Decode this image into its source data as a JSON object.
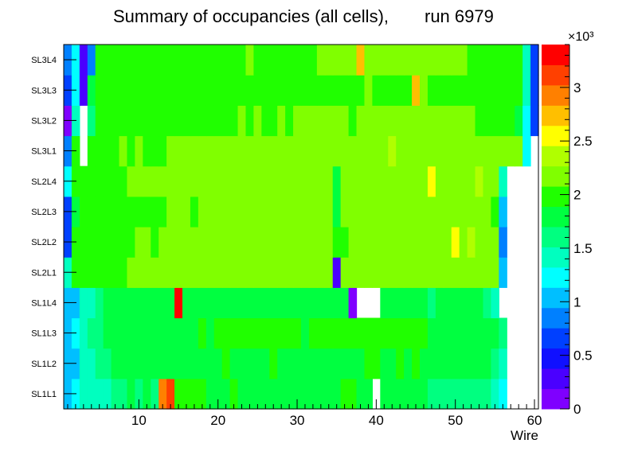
{
  "chart_data": {
    "type": "heatmap",
    "title_left": "Summary of occupancies (all cells),",
    "title_right": "run 6979",
    "xlabel": "Wire",
    "ylabel": "",
    "xlim": [
      0.5,
      60.5
    ],
    "x_ticks": [
      10,
      20,
      30,
      40,
      50,
      60
    ],
    "y_categories": [
      "SL1L1",
      "SL1L2",
      "SL1L3",
      "SL1L4",
      "SL2L1",
      "SL2L2",
      "SL2L3",
      "SL2L4",
      "SL3L1",
      "SL3L2",
      "SL3L3",
      "SL3L4"
    ],
    "colorbar": {
      "multiplier": "×10³",
      "range": [
        0,
        3.4
      ],
      "ticks": [
        0,
        0.5,
        1,
        1.5,
        2,
        2.5,
        3
      ],
      "tick_labels": [
        "0",
        "0.5",
        "1",
        "1.5",
        "2",
        "2.5",
        "3"
      ],
      "colors": [
        "#7f00ff",
        "#4a00ff",
        "#1010ff",
        "#0040ff",
        "#0080ff",
        "#00bfff",
        "#00ffff",
        "#00ffbf",
        "#00ff80",
        "#00ff40",
        "#20ff00",
        "#80ff00",
        "#b0ff00",
        "#ffff00",
        "#ffbf00",
        "#ff8000",
        "#ff4000",
        "#ff0000"
      ]
    },
    "rows": [
      {
        "name": "SL1L1",
        "values": [
          1.1,
          1.25,
          1.45,
          1.5,
          1.5,
          1.5,
          1.6,
          1.6,
          1.7,
          1.65,
          1.7,
          1.65,
          2.95,
          3.2,
          2.0,
          1.9,
          1.95,
          1.9,
          1.85,
          1.85,
          1.85,
          1.9,
          1.85,
          1.85,
          1.8,
          1.85,
          1.85,
          1.85,
          1.85,
          1.85,
          1.85,
          1.85,
          1.85,
          1.85,
          1.85,
          1.9,
          1.9,
          1.85,
          1.85,
          null,
          1.85,
          1.8,
          1.85,
          1.85,
          1.85,
          1.85,
          1.6,
          1.6,
          1.6,
          1.6,
          1.6,
          1.6,
          1.6,
          1.6,
          1.4,
          1.2,
          null,
          null,
          null,
          null
        ]
      },
      {
        "name": "SL1L2",
        "values": [
          0.95,
          1.05,
          1.4,
          1.5,
          1.55,
          1.6,
          1.7,
          1.75,
          1.75,
          1.75,
          1.8,
          1.75,
          1.75,
          1.8,
          1.75,
          1.75,
          1.75,
          1.85,
          1.8,
          1.85,
          1.9,
          1.85,
          1.85,
          1.85,
          1.85,
          1.85,
          1.9,
          1.85,
          1.85,
          1.85,
          1.85,
          1.85,
          1.85,
          1.85,
          1.85,
          1.85,
          1.85,
          1.85,
          1.9,
          1.9,
          1.85,
          1.85,
          1.9,
          1.85,
          1.9,
          1.85,
          1.75,
          1.75,
          1.75,
          1.75,
          1.75,
          1.75,
          1.75,
          1.7,
          1.6,
          1.45,
          null,
          null,
          null,
          null
        ]
      },
      {
        "name": "SL1L3",
        "values": [
          1.05,
          1.15,
          1.5,
          1.55,
          1.6,
          1.7,
          1.75,
          1.8,
          1.75,
          1.8,
          1.85,
          1.8,
          1.8,
          1.8,
          1.85,
          1.8,
          1.8,
          1.9,
          1.85,
          1.9,
          1.9,
          1.9,
          1.9,
          1.95,
          1.9,
          1.9,
          1.9,
          1.9,
          1.9,
          1.9,
          1.85,
          1.95,
          1.9,
          1.95,
          1.95,
          1.9,
          1.95,
          1.9,
          1.95,
          1.95,
          1.9,
          1.95,
          1.95,
          1.95,
          1.95,
          1.9,
          1.85,
          1.85,
          1.85,
          1.85,
          1.85,
          1.85,
          1.85,
          1.8,
          1.7,
          1.55,
          null,
          null,
          null,
          null
        ]
      },
      {
        "name": "SL1L4",
        "values": [
          0.95,
          1.05,
          1.35,
          1.5,
          1.65,
          1.7,
          1.75,
          1.75,
          1.75,
          1.8,
          1.8,
          1.8,
          1.8,
          1.8,
          3.35,
          1.8,
          1.8,
          1.8,
          1.85,
          1.85,
          1.85,
          1.85,
          1.85,
          1.85,
          1.85,
          1.85,
          1.85,
          1.85,
          1.85,
          1.85,
          1.85,
          1.85,
          1.85,
          1.85,
          1.85,
          1.85,
          0.15,
          null,
          null,
          null,
          1.85,
          1.8,
          1.85,
          1.85,
          1.8,
          1.85,
          1.65,
          1.7,
          1.7,
          1.7,
          1.7,
          1.7,
          1.7,
          1.65,
          1.5,
          null,
          null,
          null,
          null,
          null
        ]
      },
      {
        "name": "SL2L1",
        "values": [
          1.45,
          2.0,
          2.05,
          2.05,
          2.05,
          2.05,
          2.05,
          2.05,
          2.1,
          2.1,
          2.15,
          2.1,
          2.15,
          2.15,
          2.15,
          2.15,
          2.15,
          2.2,
          2.15,
          2.15,
          2.15,
          2.2,
          2.2,
          2.2,
          2.2,
          2.2,
          2.2,
          2.2,
          2.2,
          2.2,
          2.2,
          2.2,
          2.15,
          2.2,
          0.2,
          2.2,
          2.2,
          2.2,
          2.2,
          2.2,
          2.2,
          2.2,
          2.2,
          2.2,
          2.2,
          2.2,
          2.2,
          2.2,
          2.2,
          2.15,
          2.15,
          2.15,
          2.15,
          2.15,
          2.1,
          1.05,
          null,
          null,
          null,
          null
        ]
      },
      {
        "name": "SL2L2",
        "values": [
          0.6,
          1.9,
          2.05,
          2.05,
          2.0,
          2.05,
          2.0,
          2.05,
          2.05,
          2.1,
          2.1,
          2.05,
          2.1,
          2.1,
          2.1,
          2.15,
          2.1,
          2.15,
          2.1,
          2.15,
          2.15,
          2.15,
          2.15,
          2.15,
          2.15,
          2.15,
          2.15,
          2.15,
          2.15,
          2.15,
          2.15,
          2.15,
          2.15,
          2.15,
          1.9,
          1.9,
          2.2,
          2.2,
          2.2,
          2.2,
          2.2,
          2.2,
          2.2,
          2.2,
          2.2,
          2.2,
          2.2,
          2.2,
          2.2,
          2.5,
          2.15,
          2.45,
          2.15,
          2.15,
          2.1,
          0.9,
          null,
          null,
          null,
          null
        ]
      },
      {
        "name": "SL2L3",
        "values": [
          0.6,
          1.85,
          1.95,
          2.0,
          1.95,
          2.0,
          2.0,
          2.0,
          2.05,
          2.05,
          2.05,
          2.05,
          2.05,
          2.1,
          2.1,
          2.1,
          2.05,
          2.1,
          2.1,
          2.1,
          2.1,
          2.1,
          2.1,
          2.1,
          2.1,
          2.1,
          2.1,
          2.1,
          2.1,
          2.15,
          2.1,
          2.1,
          2.1,
          2.1,
          1.7,
          2.1,
          2.15,
          2.15,
          2.15,
          2.15,
          2.15,
          2.15,
          2.15,
          2.15,
          2.15,
          2.15,
          2.15,
          2.15,
          2.15,
          2.15,
          2.1,
          2.1,
          2.1,
          2.1,
          2.05,
          1.05,
          null,
          null,
          null,
          null
        ]
      },
      {
        "name": "SL2L4",
        "values": [
          1.3,
          2.0,
          2.05,
          2.05,
          2.05,
          2.05,
          2.05,
          2.05,
          2.1,
          2.1,
          2.15,
          2.1,
          2.15,
          2.15,
          2.15,
          2.2,
          2.15,
          2.15,
          2.15,
          2.15,
          2.2,
          2.2,
          2.2,
          2.2,
          2.2,
          2.2,
          2.2,
          2.2,
          2.2,
          2.2,
          2.2,
          2.2,
          2.2,
          2.15,
          1.8,
          2.2,
          2.2,
          2.2,
          2.2,
          2.2,
          2.2,
          2.2,
          2.2,
          2.2,
          2.2,
          2.2,
          2.5,
          2.2,
          2.2,
          2.2,
          2.2,
          2.2,
          2.45,
          2.2,
          2.15,
          1.35,
          null,
          null,
          null,
          null
        ]
      },
      {
        "name": "SL3L1",
        "values": [
          0.8,
          1.9,
          null,
          2.0,
          2.05,
          2.0,
          2.05,
          2.1,
          2.05,
          2.1,
          2.05,
          2.05,
          2.05,
          2.1,
          2.1,
          2.1,
          2.1,
          2.15,
          2.15,
          2.15,
          2.15,
          2.15,
          2.15,
          2.15,
          2.15,
          2.15,
          2.15,
          2.15,
          2.15,
          2.15,
          2.15,
          2.15,
          2.15,
          2.15,
          2.15,
          2.2,
          2.15,
          2.2,
          2.2,
          2.15,
          2.2,
          2.45,
          2.15,
          2.2,
          2.2,
          2.2,
          2.2,
          2.2,
          2.2,
          2.2,
          2.2,
          2.2,
          2.2,
          2.2,
          2.2,
          2.2,
          2.2,
          2.2,
          1.3,
          null
        ]
      },
      {
        "name": "SL3L2",
        "values": [
          0.1,
          1.4,
          null,
          1.55,
          2.0,
          2.05,
          2.0,
          2.05,
          2.0,
          2.05,
          2.05,
          2.05,
          2.05,
          2.05,
          2.0,
          2.05,
          2.05,
          2.05,
          2.05,
          2.05,
          2.05,
          2.05,
          2.1,
          2.05,
          2.1,
          2.05,
          2.05,
          2.1,
          2.05,
          2.1,
          2.1,
          2.1,
          2.1,
          2.1,
          2.1,
          2.1,
          2.05,
          2.1,
          2.1,
          2.1,
          2.1,
          2.1,
          2.1,
          2.1,
          2.1,
          2.1,
          2.1,
          2.1,
          2.1,
          2.1,
          2.1,
          2.1,
          2.05,
          2.05,
          2.05,
          2.0,
          2.0,
          1.8,
          1.2,
          0.6
        ]
      },
      {
        "name": "SL3L3",
        "values": [
          0.6,
          1.15,
          0.3,
          1.7,
          1.95,
          2.0,
          1.95,
          2.0,
          2.0,
          2.0,
          2.0,
          2.05,
          2.0,
          2.0,
          2.0,
          2.05,
          2.0,
          2.05,
          2.0,
          2.05,
          2.05,
          2.05,
          2.05,
          2.05,
          2.05,
          2.05,
          2.05,
          2.05,
          2.05,
          2.05,
          2.05,
          2.05,
          2.05,
          2.05,
          2.05,
          2.05,
          2.05,
          2.05,
          2.1,
          2.05,
          2.05,
          2.05,
          2.05,
          2.05,
          2.65,
          2.1,
          2.05,
          2.05,
          2.05,
          2.05,
          2.05,
          2.05,
          2.0,
          2.0,
          2.0,
          2.0,
          2.0,
          2.0,
          1.4,
          0.6
        ]
      },
      {
        "name": "SL3L4",
        "values": [
          0.9,
          1.3,
          0.3,
          0.9,
          2.05,
          2.0,
          2.0,
          2.0,
          2.0,
          2.0,
          2.0,
          2.05,
          2.05,
          2.05,
          2.0,
          2.05,
          2.05,
          2.05,
          2.05,
          2.05,
          2.05,
          2.05,
          2.05,
          2.1,
          2.05,
          2.05,
          2.05,
          2.05,
          2.05,
          2.05,
          2.05,
          2.05,
          2.1,
          2.1,
          2.1,
          2.1,
          2.1,
          2.75,
          2.2,
          2.1,
          2.1,
          2.1,
          2.1,
          2.1,
          2.1,
          2.1,
          2.1,
          2.1,
          2.1,
          2.1,
          2.1,
          2.05,
          2.05,
          2.05,
          2.05,
          2.05,
          2.05,
          2.05,
          1.4,
          0.6
        ]
      }
    ]
  }
}
